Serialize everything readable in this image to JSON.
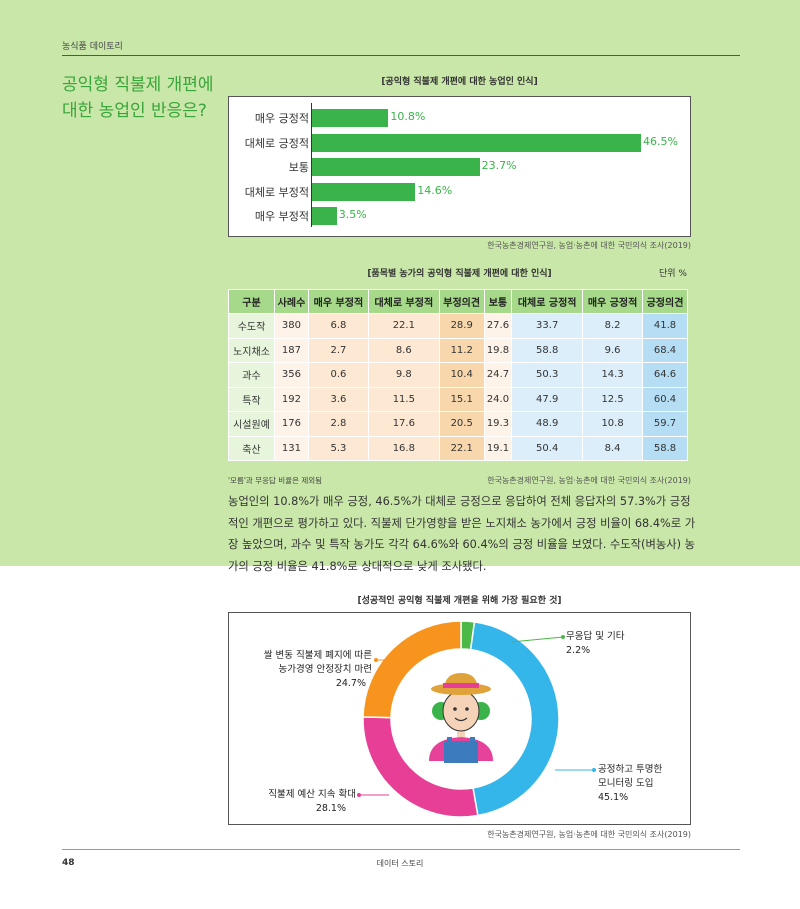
{
  "header": {
    "section": "농식품 데이토리"
  },
  "side_title": {
    "line1": "공익형 직불제 개편에",
    "line2": "대한 농업인 반응은?"
  },
  "chart1": {
    "title": "[공익형 직불제 개편에 대한 농업인 인식]",
    "source": "한국농촌경제연구원, 농업·농촌에 대한 국민의식 조사(2019)",
    "color": "#3ab34a"
  },
  "chart_data": [
    {
      "type": "bar",
      "orientation": "horizontal",
      "title": "[공익형 직불제 개편에 대한 농업인 인식]",
      "categories": [
        "매우 긍정적",
        "대체로 긍정적",
        "보통",
        "대체로 부정적",
        "매우 부정적"
      ],
      "values": [
        10.8,
        46.5,
        23.7,
        14.6,
        3.5
      ],
      "value_labels": [
        "10.8%",
        "46.5%",
        "23.7%",
        "14.6%",
        "3.5%"
      ],
      "xlim": [
        0,
        46.5
      ]
    },
    {
      "type": "pie",
      "donut": true,
      "title": "[성공적인 공익형 직불제 개편을 위해 가장 필요한 것]",
      "categories": [
        "무응답 및 기타",
        "공정하고 투명한 모니터링 도입",
        "직불제 예산 지속 확대",
        "쌀 변동 직불제 폐지에 따른 농가경영 안정장치 마련"
      ],
      "values": [
        2.2,
        45.1,
        28.1,
        24.7
      ],
      "colors": [
        "#4cb848",
        "#35b6ea",
        "#e63f95",
        "#f7941d"
      ]
    }
  ],
  "table": {
    "title": "[품목별 농가의 공익형 직불제 개편에 대한 인식]",
    "unit": "단위 %",
    "headers": [
      "구분",
      "사례수",
      "매우 부정적",
      "대체로 부정적",
      "부정의견",
      "보통",
      "대체로 긍정적",
      "매우 긍정적",
      "긍정의견"
    ],
    "rows": [
      [
        "수도작",
        "380",
        "6.8",
        "22.1",
        "28.9",
        "27.6",
        "33.7",
        "8.2",
        "41.8"
      ],
      [
        "노지채소",
        "187",
        "2.7",
        "8.6",
        "11.2",
        "19.8",
        "58.8",
        "9.6",
        "68.4"
      ],
      [
        "과수",
        "356",
        "0.6",
        "9.8",
        "10.4",
        "24.7",
        "50.3",
        "14.3",
        "64.6"
      ],
      [
        "특작",
        "192",
        "3.6",
        "11.5",
        "15.1",
        "24.0",
        "47.9",
        "12.5",
        "60.4"
      ],
      [
        "시설원예",
        "176",
        "2.8",
        "17.6",
        "20.5",
        "19.3",
        "48.9",
        "10.8",
        "59.7"
      ],
      [
        "축산",
        "131",
        "5.3",
        "16.8",
        "22.1",
        "19.1",
        "50.4",
        "8.4",
        "58.8"
      ]
    ],
    "note": "'모름'과 무응답 비율은 제외됨",
    "source": "한국농촌경제연구원, 농업·농촌에 대한 국민의식 조사(2019)"
  },
  "body_text": "농업인의 10.8%가 매우 긍정, 46.5%가 대체로 긍정으로 응답하여 전체 응답자의 57.3%가 긍정적인 개편으로 평가하고 있다. 직불제 단가영향을 받은 노지채소 농가에서 긍정 비율이 68.4%로 가장 높았으며, 과수 및 특작 농가도 각각 64.6%와 60.4%의 긍정 비율을 보였다. 수도작(벼농사) 농가의 긍정 비율은 41.8%로 상대적으로 낮게 조사됐다.",
  "donut": {
    "title": "[성공적인 공익형 직불제 개편을 위해 가장 필요한 것]",
    "labels": {
      "etc_name": "무응답 및 기타",
      "etc_value": "2.2%",
      "monitor_name1": "공정하고 투명한",
      "monitor_name2": "모니터링 도입",
      "monitor_value": "45.1%",
      "budget_name": "직불제 예산 지속 확대",
      "budget_value": "28.1%",
      "rice_name1": "쌀 변동 직불제 폐지에 따른",
      "rice_name2": "농가경영 안정장치 마련",
      "rice_value": "24.7%"
    },
    "source": "한국농촌경제연구원, 농업·농촌에 대한 국민의식 조사(2019)"
  },
  "footer": {
    "page": "48",
    "center": "데이터 스토리"
  }
}
